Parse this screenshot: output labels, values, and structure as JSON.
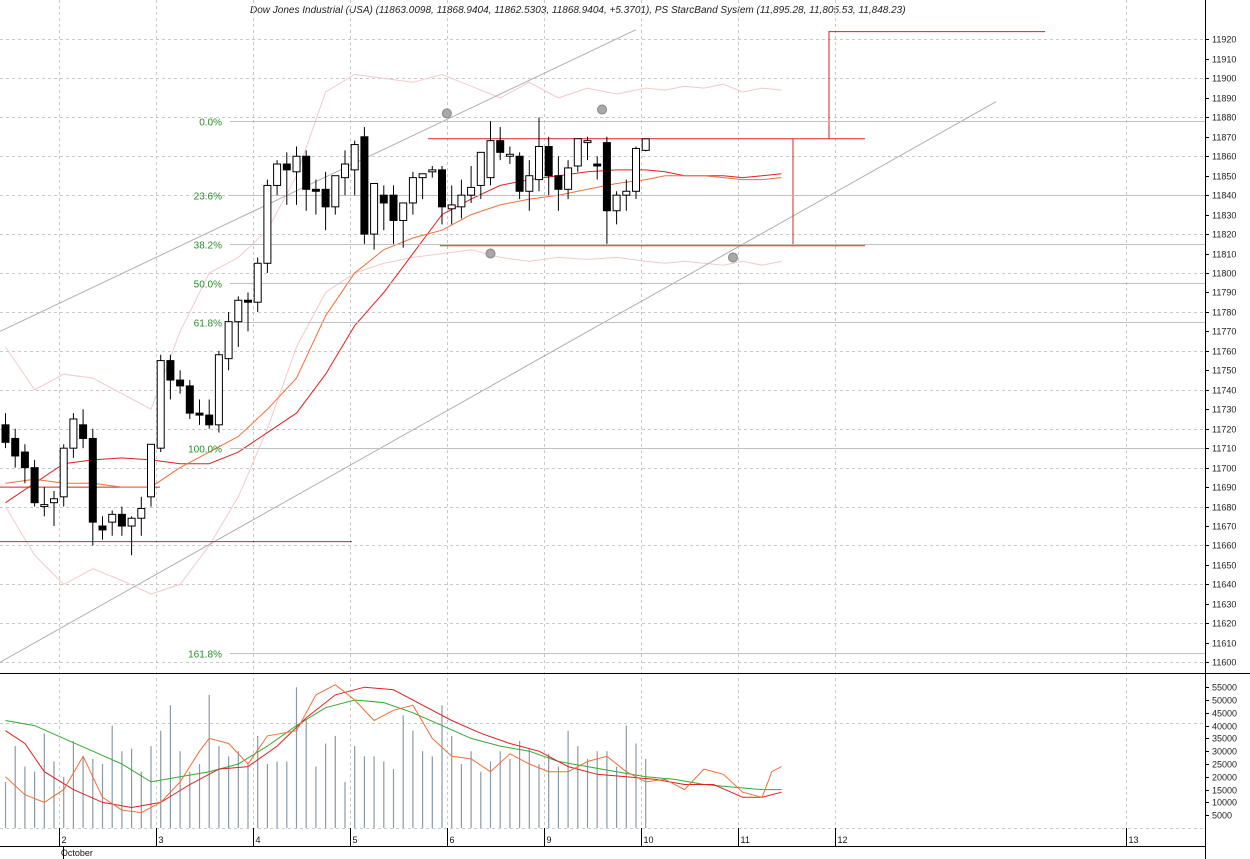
{
  "header": {
    "title": "Dow Jones Industrial (USA) (11863.0098, 11868.9404, 11862.5303, 11868.9404, +5.3701), PS StarcBand System  (11,895.28, 11,805.53, 11,848.23)"
  },
  "chart_data": {
    "type": "candlestick",
    "price_axis": {
      "ylim": [
        11595,
        11930
      ],
      "ticks": [
        11600,
        11610,
        11620,
        11630,
        11640,
        11650,
        11660,
        11670,
        11680,
        11690,
        11700,
        11710,
        11720,
        11730,
        11740,
        11750,
        11760,
        11770,
        11780,
        11790,
        11800,
        11810,
        11820,
        11830,
        11840,
        11850,
        11860,
        11870,
        11880,
        11890,
        11900,
        11910,
        11920
      ]
    },
    "volume_axis": {
      "ylim": [
        0,
        59000
      ],
      "ticks": [
        5000,
        10000,
        15000,
        20000,
        25000,
        30000,
        35000,
        40000,
        45000,
        50000,
        55000
      ],
      "tick_labels": [
        "5000",
        "10000",
        "15000",
        "20000",
        "25000",
        "30000",
        "35000",
        "40000",
        "45000",
        "50000",
        "55000"
      ]
    },
    "x_axis": {
      "month_label": "October",
      "ticks": [
        {
          "label": "2",
          "bar": 5.5
        },
        {
          "label": "3",
          "bar": 15.5
        },
        {
          "label": "4",
          "bar": 25.5
        },
        {
          "label": "5",
          "bar": 35.5
        },
        {
          "label": "6",
          "bar": 45.5
        },
        {
          "label": "9",
          "bar": 55.5
        },
        {
          "label": "10",
          "bar": 65.5
        },
        {
          "label": "11",
          "bar": 75.5
        },
        {
          "label": "12",
          "bar": 85.5
        },
        {
          "label": "13",
          "bar": 115.5
        }
      ]
    },
    "fib_levels": [
      {
        "label": "0.0%",
        "price": 11878
      },
      {
        "label": "23.6%",
        "price": 11840
      },
      {
        "label": "38.2%",
        "price": 11815
      },
      {
        "label": "50.0%",
        "price": 11795
      },
      {
        "label": "61.8%",
        "price": 11775
      },
      {
        "label": "100.0%",
        "price": 11710
      },
      {
        "label": "161.8%",
        "price": 11605
      }
    ],
    "candles": [
      [
        11722,
        11728,
        11710,
        11713
      ],
      [
        11715,
        11720,
        11700,
        11706
      ],
      [
        11708,
        11712,
        11692,
        11700
      ],
      [
        11700,
        11704,
        11680,
        11682
      ],
      [
        11680,
        11690,
        11675,
        11681
      ],
      [
        11682,
        11688,
        11670,
        11684
      ],
      [
        11685,
        11712,
        11680,
        11710
      ],
      [
        11710,
        11728,
        11705,
        11725
      ],
      [
        11722,
        11730,
        11710,
        11715
      ],
      [
        11715,
        11720,
        11660,
        11672
      ],
      [
        11670,
        11675,
        11663,
        11668
      ],
      [
        11672,
        11678,
        11665,
        11676
      ],
      [
        11676,
        11680,
        11665,
        11670
      ],
      [
        11670,
        11675,
        11655,
        11674
      ],
      [
        11674,
        11685,
        11665,
        11679
      ],
      [
        11685,
        11712,
        11680,
        11712
      ],
      [
        11710,
        11758,
        11708,
        11755
      ],
      [
        11755,
        11758,
        11735,
        11745
      ],
      [
        11745,
        11750,
        11738,
        11742
      ],
      [
        11742,
        11745,
        11725,
        11728
      ],
      [
        11728,
        11735,
        11722,
        11727
      ],
      [
        11727,
        11735,
        11720,
        11722
      ],
      [
        11722,
        11760,
        11718,
        11758
      ],
      [
        11756,
        11780,
        11750,
        11775
      ],
      [
        11775,
        11788,
        11762,
        11786
      ],
      [
        11786,
        11790,
        11770,
        11785
      ],
      [
        11785,
        11808,
        11780,
        11805
      ],
      [
        11805,
        11848,
        11800,
        11845
      ],
      [
        11845,
        11858,
        11840,
        11856
      ],
      [
        11856,
        11862,
        11835,
        11853
      ],
      [
        11852,
        11865,
        11835,
        11860
      ],
      [
        11860,
        11863,
        11832,
        11843
      ],
      [
        11843,
        11848,
        11830,
        11842
      ],
      [
        11843,
        11852,
        11822,
        11834
      ],
      [
        11834,
        11850,
        11830,
        11850
      ],
      [
        11849,
        11863,
        11840,
        11856
      ],
      [
        11853,
        11868,
        11840,
        11866
      ],
      [
        11870,
        11875,
        11815,
        11820
      ],
      [
        11820,
        11846,
        11812,
        11846
      ],
      [
        11840,
        11845,
        11822,
        11836
      ],
      [
        11840,
        11845,
        11815,
        11827
      ],
      [
        11827,
        11835,
        11813,
        11836
      ],
      [
        11836,
        11852,
        11830,
        11849
      ],
      [
        11849,
        11850,
        11838,
        11851
      ],
      [
        11852,
        11855,
        11849,
        11853
      ],
      [
        11853,
        11855,
        11825,
        11834
      ],
      [
        11833,
        11845,
        11825,
        11835
      ],
      [
        11834,
        11848,
        11828,
        11840
      ],
      [
        11840,
        11855,
        11836,
        11844
      ],
      [
        11845,
        11860,
        11838,
        11862
      ],
      [
        11849,
        11878,
        11845,
        11868
      ],
      [
        11868,
        11875,
        11858,
        11862
      ],
      [
        11860,
        11865,
        11856,
        11861
      ],
      [
        11860,
        11862,
        11838,
        11842
      ],
      [
        11842,
        11858,
        11832,
        11850
      ],
      [
        11848,
        11880,
        11842,
        11865
      ],
      [
        11865,
        11870,
        11840,
        11850
      ],
      [
        11850,
        11860,
        11832,
        11843
      ],
      [
        11843,
        11858,
        11838,
        11854
      ],
      [
        11855,
        11869,
        11852,
        11869
      ],
      [
        11867,
        11870,
        11858,
        11868
      ],
      [
        11856,
        11860,
        11848,
        11855
      ],
      [
        11867,
        11870,
        11815,
        11832
      ],
      [
        11832,
        11842,
        11825,
        11840
      ],
      [
        11840,
        11848,
        11832,
        11842
      ],
      [
        11842,
        11865,
        11838,
        11864
      ],
      [
        11863.0098,
        11868.9404,
        11862.5303,
        11868.9404
      ]
    ],
    "volumes": [
      18000,
      32000,
      24000,
      22000,
      37000,
      26000,
      20000,
      34000,
      28000,
      27000,
      25000,
      40000,
      30000,
      31000,
      22000,
      32000,
      38000,
      48000,
      30000,
      22000,
      25000,
      52000,
      32000,
      28000,
      30000,
      25000,
      36000,
      25000,
      26000,
      26000,
      55000,
      42000,
      24000,
      33000,
      36000,
      18000,
      32000,
      28000,
      28000,
      26000,
      23000,
      44000,
      38000,
      30000,
      28000,
      48000,
      36000,
      25000,
      30000,
      22000,
      26000,
      30000,
      27000,
      34000,
      31000,
      25000,
      29000,
      24000,
      38000,
      32000,
      27000,
      30000,
      30000,
      24000,
      40000,
      33000,
      27000
    ]
  }
}
